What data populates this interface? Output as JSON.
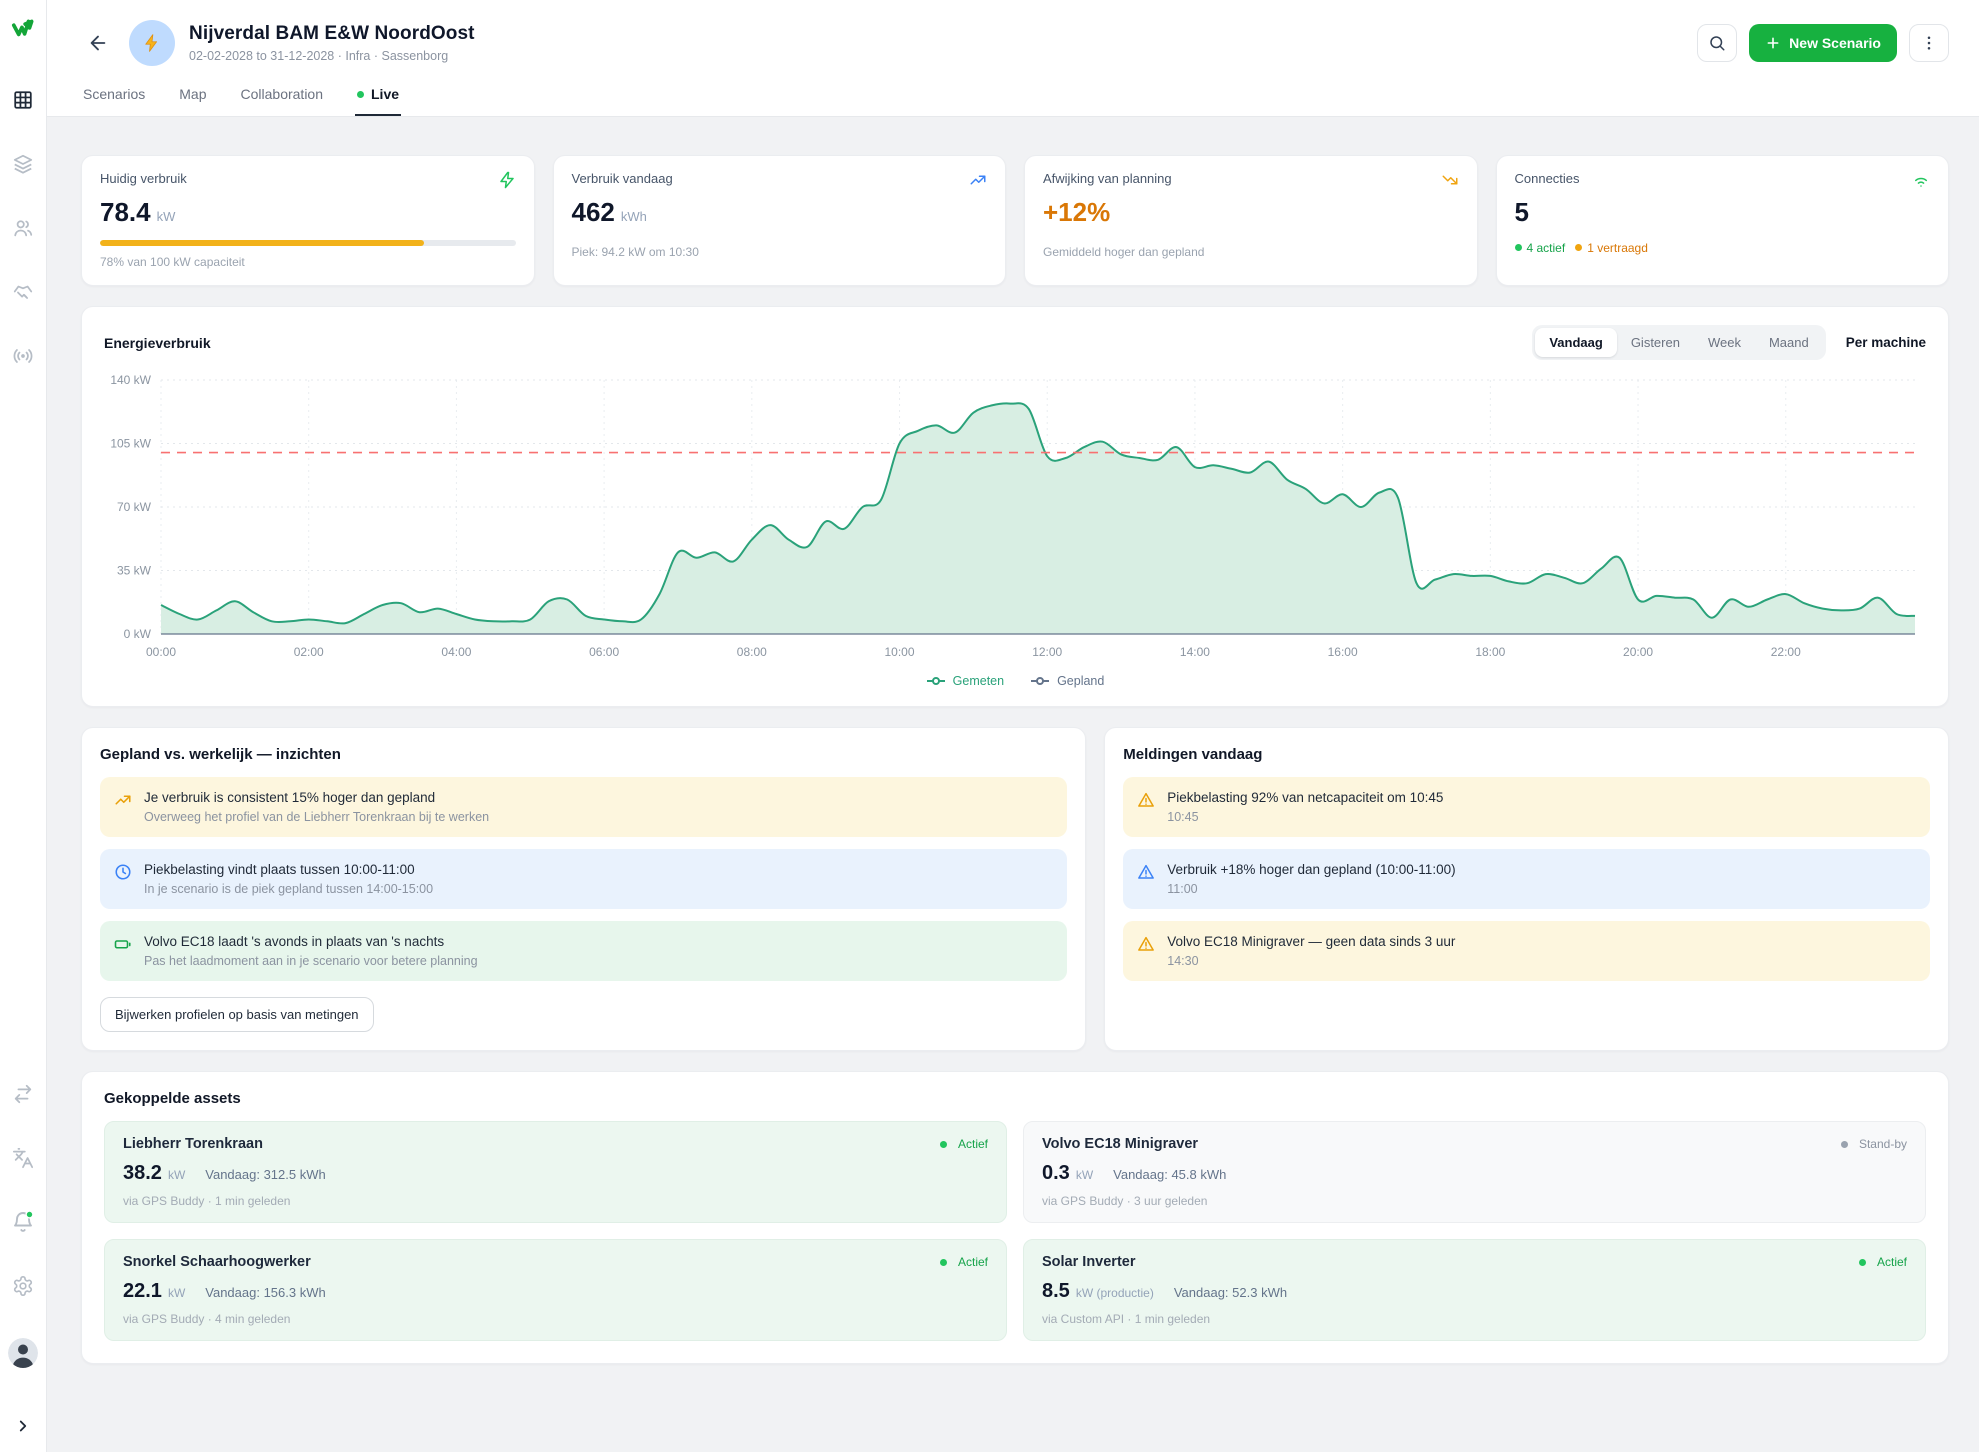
{
  "header": {
    "title": "Nijverdal BAM E&W NoordOost",
    "subtitle": "02-02-2028 to 31-12-2028 · Infra · Sassenborg",
    "tabs": [
      {
        "label": "Scenarios",
        "active": false
      },
      {
        "label": "Map",
        "active": false
      },
      {
        "label": "Collaboration",
        "active": false
      },
      {
        "label": "Live",
        "active": true
      }
    ],
    "new_scenario_label": "New Scenario"
  },
  "stats": [
    {
      "label": "Huidig verbruik",
      "value": "78.4",
      "unit": "kW",
      "progress_pct": 78,
      "caption": "78% van 100 kW capaciteit",
      "icon": "bolt",
      "icon_color": "#22c55e"
    },
    {
      "label": "Verbruik vandaag",
      "value": "462",
      "unit": "kWh",
      "caption": "Piek: 94.2 kW om 10:30",
      "icon": "trending-up",
      "icon_color": "#3b82f6"
    },
    {
      "label": "Afwijking van planning",
      "value": "+12%",
      "caption": "Gemiddeld hoger dan gepland",
      "icon": "trending-down",
      "icon_color": "#f0a410"
    },
    {
      "label": "Connecties",
      "value": "5",
      "active_label": "4 actief",
      "delayed_label": "1 vertraagd",
      "icon": "wifi",
      "icon_color": "#22c55e"
    }
  ],
  "chart": {
    "title": "Energieverbruik",
    "ranges": [
      "Vandaag",
      "Gisteren",
      "Week",
      "Maand"
    ],
    "active_range": "Vandaag",
    "per_machine_label": "Per machine",
    "legend": [
      {
        "label": "Gemeten",
        "color": "#2aa27a"
      },
      {
        "label": "Gepland",
        "color": "#64748b"
      }
    ]
  },
  "chart_data": {
    "type": "area",
    "title": "Energieverbruik",
    "x_start": "00:00",
    "x_step_minutes": 15,
    "xticks": [
      "00:00",
      "02:00",
      "04:00",
      "06:00",
      "08:00",
      "10:00",
      "12:00",
      "14:00",
      "16:00",
      "18:00",
      "20:00",
      "22:00"
    ],
    "yticks": [
      "0 kW",
      "35 kW",
      "70 kW",
      "105 kW",
      "140 kW"
    ],
    "ytick_values": [
      0,
      35,
      70,
      105,
      140
    ],
    "ylim": [
      0,
      140
    ],
    "capacity_line_kw": 100,
    "grid": true,
    "legend_position": "bottom",
    "series": [
      {
        "name": "Gemeten",
        "color": "#2aa27a",
        "fill": "#d8eee3",
        "values": [
          16,
          11,
          8,
          13,
          18,
          12,
          7,
          7,
          8,
          7,
          6,
          11,
          16,
          17,
          12,
          14,
          11,
          8,
          7,
          7,
          8,
          18,
          19,
          10,
          8,
          7,
          8,
          22,
          45,
          42,
          45,
          40,
          52,
          60,
          52,
          48,
          62,
          58,
          70,
          74,
          105,
          112,
          115,
          111,
          122,
          126,
          127,
          124,
          98,
          97,
          103,
          106,
          99,
          97,
          96,
          103,
          92,
          93,
          91,
          89,
          95,
          85,
          80,
          72,
          77,
          70,
          78,
          75,
          28,
          30,
          33,
          32,
          32,
          29,
          28,
          33,
          31,
          28,
          36,
          42,
          19,
          21,
          20,
          19,
          9,
          19,
          15,
          19,
          22,
          17,
          14,
          13,
          14,
          20,
          11,
          10
        ]
      }
    ],
    "capacity_color": "#f87171"
  },
  "insights": {
    "title": "Gepland vs. werkelijk — inzichten",
    "items": [
      {
        "tone": "yellow",
        "icon": "trending-up",
        "title": "Je verbruik is consistent 15% hoger dan gepland",
        "subtitle": "Overweeg het profiel van de Liebherr Torenkraan bij te werken"
      },
      {
        "tone": "blue",
        "icon": "clock",
        "title": "Piekbelasting vindt plaats tussen 10:00-11:00",
        "subtitle": "In je scenario is de piek gepland tussen 14:00-15:00"
      },
      {
        "tone": "green",
        "icon": "battery",
        "title": "Volvo EC18 laadt 's avonds in plaats van 's nachts",
        "subtitle": "Pas het laadmoment aan in je scenario voor betere planning"
      }
    ],
    "action_label": "Bijwerken profielen op basis van metingen"
  },
  "alerts": {
    "title": "Meldingen vandaag",
    "items": [
      {
        "tone": "yellow",
        "title": "Piekbelasting 92% van netcapaciteit om 10:45",
        "time": "10:45"
      },
      {
        "tone": "blue",
        "title": "Verbruik +18% hoger dan gepland (10:00-11:00)",
        "time": "11:00"
      },
      {
        "tone": "yellow",
        "title": "Volvo EC18 Minigraver — geen data sinds 3 uur",
        "time": "14:30"
      }
    ]
  },
  "assets": {
    "title": "Gekoppelde assets",
    "items": [
      {
        "name": "Liebherr Torenkraan",
        "status": "Actief",
        "status_tone": "green",
        "power": "38.2",
        "power_unit": "kW",
        "today": "Vandaag: 312.5 kWh",
        "source": "via GPS Buddy · 1 min geleden"
      },
      {
        "name": "Volvo EC18 Minigraver",
        "status": "Stand-by",
        "status_tone": "gray",
        "power": "0.3",
        "power_unit": "kW",
        "today": "Vandaag: 45.8 kWh",
        "source": "via GPS Buddy · 3 uur geleden"
      },
      {
        "name": "Snorkel Schaarhoogwerker",
        "status": "Actief",
        "status_tone": "green",
        "power": "22.1",
        "power_unit": "kW",
        "today": "Vandaag: 156.3 kWh",
        "source": "via GPS Buddy · 4 min geleden"
      },
      {
        "name": "Solar Inverter",
        "status": "Actief",
        "status_tone": "green",
        "power": "8.5",
        "power_unit": "kW (productie)",
        "today": "Vandaag: 52.3 kWh",
        "source": "via Custom API · 1 min geleden"
      }
    ]
  }
}
